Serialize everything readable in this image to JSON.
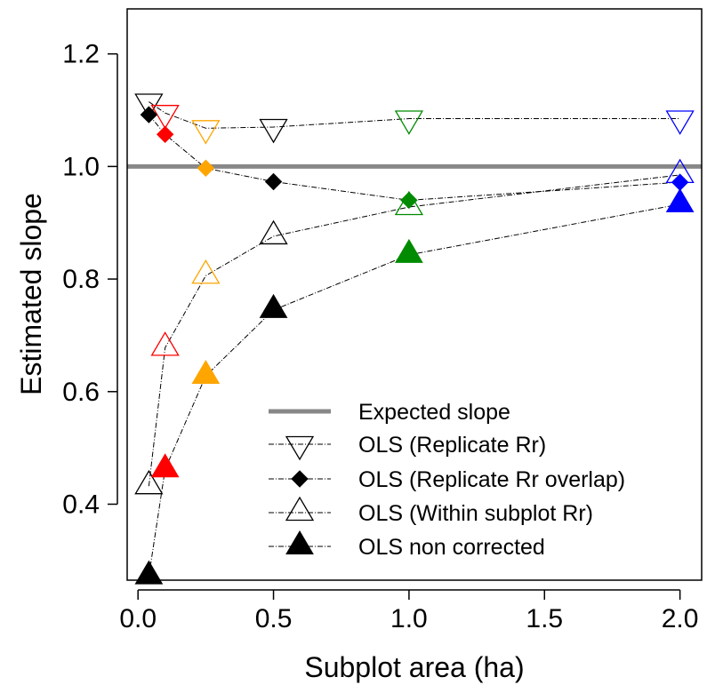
{
  "chart_data": {
    "type": "line",
    "title": "",
    "xlabel": "Subplot area (ha)",
    "ylabel": "Estimated slope",
    "xlim": [
      -0.04,
      2.08
    ],
    "ylim": [
      0.265,
      1.28
    ],
    "x_ticks": [
      0.0,
      0.5,
      1.0,
      1.5,
      2.0
    ],
    "x_tick_labels": [
      "0.0",
      "0.5",
      "1.0",
      "1.5",
      "2.0"
    ],
    "y_ticks": [
      0.4,
      0.6,
      0.8,
      1.0,
      1.2
    ],
    "y_tick_labels": [
      "0.4",
      "0.6",
      "0.8",
      "1.0",
      "1.2"
    ],
    "grid": false,
    "legend_position": "bottom-right",
    "reference_line": {
      "name": "Expected slope",
      "y": 1.0,
      "color": "#888888"
    },
    "point_colors": [
      "#000000",
      "#ff0000",
      "#ffa500",
      "#000000",
      "#008b00",
      "#0000ff"
    ],
    "series": [
      {
        "name": "OLS (Replicate Rr)",
        "marker": "triangle-down-open",
        "x": [
          0.04,
          0.1,
          0.25,
          0.5,
          1.0,
          2.0
        ],
        "y": [
          1.115,
          1.095,
          1.068,
          1.07,
          1.085,
          1.085
        ]
      },
      {
        "name": "OLS (Replicate Rr overlap)",
        "marker": "diamond-filled",
        "x": [
          0.04,
          0.1,
          0.25,
          0.5,
          1.0,
          2.0
        ],
        "y": [
          1.092,
          1.057,
          0.997,
          0.973,
          0.94,
          0.972
        ]
      },
      {
        "name": "OLS (Within subplot Rr)",
        "marker": "triangle-up-open",
        "x": [
          0.04,
          0.1,
          0.25,
          0.5,
          1.0,
          2.0
        ],
        "y": [
          0.432,
          0.678,
          0.806,
          0.876,
          0.928,
          0.985
        ]
      },
      {
        "name": "OLS non corrected",
        "marker": "triangle-up-filled",
        "x": [
          0.04,
          0.1,
          0.25,
          0.5,
          1.0,
          2.0
        ],
        "y": [
          0.272,
          0.462,
          0.628,
          0.745,
          0.843,
          0.933
        ]
      }
    ]
  }
}
